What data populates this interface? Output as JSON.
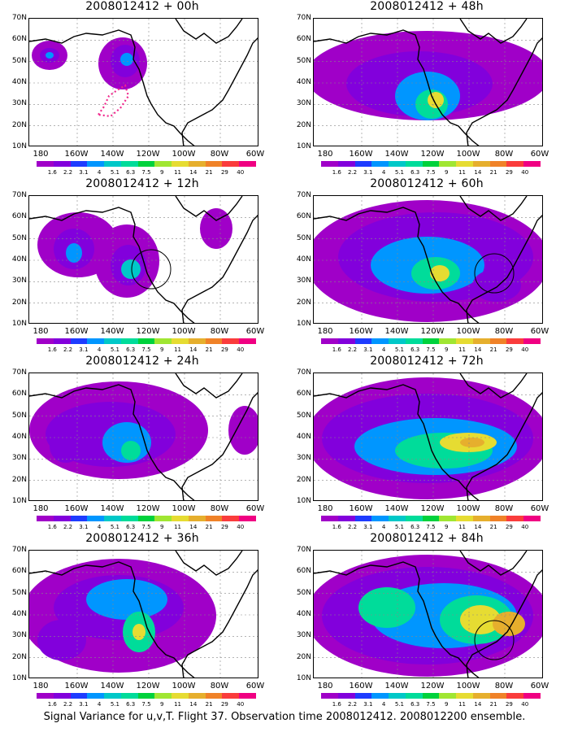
{
  "caption": "Signal Variance for u,v,T. Flight 37. Observation time 2008012412. 2008012200 ensemble.",
  "lat_labels": [
    "70N",
    "60N",
    "50N",
    "40N",
    "30N",
    "20N",
    "10N"
  ],
  "lon_labels": [
    "180",
    "160W",
    "140W",
    "120W",
    "100W",
    "80W",
    "60W"
  ],
  "colorbar": {
    "labels": [
      "1.6",
      "2.2",
      "3.1",
      "4",
      "5.1",
      "6.3",
      "7.5",
      "9",
      "11",
      "14",
      "21",
      "29",
      "40"
    ],
    "colors": [
      "#a000c8",
      "#8200dc",
      "#1e3cff",
      "#0096ff",
      "#00c8c8",
      "#00dc9a",
      "#00d23c",
      "#a0e632",
      "#e6dc32",
      "#e6af2d",
      "#f08228",
      "#fa3c3c",
      "#f00082"
    ]
  },
  "panels": [
    {
      "title": "2008012412 + 00h"
    },
    {
      "title": "2008012412 + 48h"
    },
    {
      "title": "2008012412 + 12h"
    },
    {
      "title": "2008012412 + 60h"
    },
    {
      "title": "2008012412 + 24h"
    },
    {
      "title": "2008012412 + 72h"
    },
    {
      "title": "2008012412 + 36h"
    },
    {
      "title": "2008012412 + 84h"
    }
  ]
}
